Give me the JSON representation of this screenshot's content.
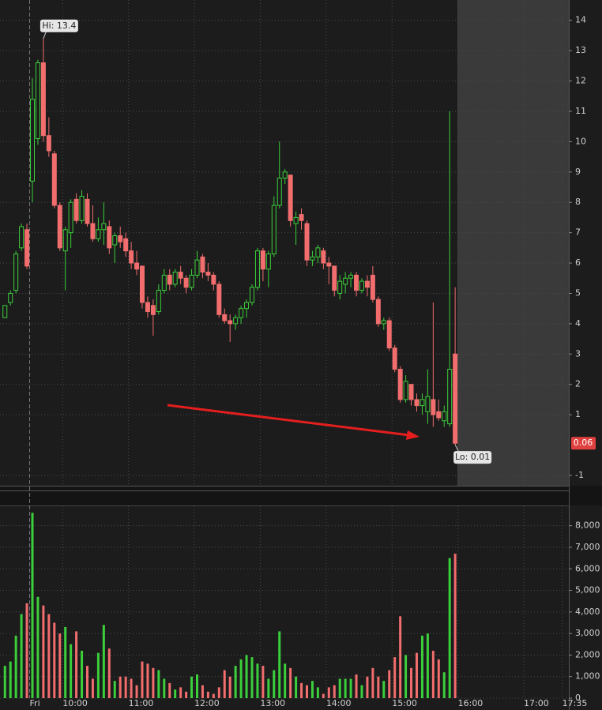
{
  "chart_data": [
    {
      "type": "candlestick",
      "annotations": [
        "Hi: 13.4",
        "Lo: 0.01"
      ],
      "up_color": "#3ccf3c",
      "down_color": "#f26d6d",
      "x": [
        545,
        550,
        555,
        560,
        565,
        570,
        575,
        580,
        585,
        590,
        595,
        600,
        605,
        610,
        615,
        620,
        625,
        630,
        635,
        640,
        645,
        650,
        655,
        660,
        665,
        670,
        675,
        680,
        685,
        690,
        695,
        700,
        705,
        710,
        715,
        720,
        725,
        730,
        735,
        740,
        745,
        750,
        755,
        760,
        765,
        770,
        775,
        780,
        785,
        790,
        795,
        800,
        805,
        810,
        815,
        820,
        825,
        830,
        835,
        840,
        845,
        850,
        855,
        860,
        865,
        870,
        875,
        880,
        885,
        890,
        895,
        900,
        905,
        910,
        915,
        920,
        925,
        930,
        935,
        940,
        945,
        950,
        955
      ],
      "open": [
        4.2,
        4.7,
        5.1,
        6.5,
        7.1,
        8.7,
        10.1,
        12.6,
        10.2,
        9.6,
        7.9,
        6.4,
        7.0,
        8.1,
        7.4,
        8.1,
        7.3,
        6.8,
        7.1,
        7.2,
        6.6,
        6.9,
        6.8,
        6.4,
        6.0,
        5.9,
        4.7,
        4.6,
        4.4,
        5.1,
        5.6,
        5.3,
        5.7,
        5.5,
        5.2,
        5.6,
        6.2,
        5.7,
        5.6,
        5.3,
        4.3,
        4.1,
        4.0,
        4.2,
        4.5,
        4.7,
        5.2,
        6.4,
        5.8,
        6.3,
        7.9,
        8.8,
        8.9,
        7.3,
        7.6,
        7.3,
        6.1,
        6.2,
        6.4,
        6.0,
        5.9,
        5.0,
        5.3,
        5.5,
        5.6,
        5.1,
        5.4,
        5.6,
        4.8,
        4.0,
        4.1,
        3.2,
        2.5,
        1.5,
        2.0,
        1.5,
        1.3,
        1.1,
        1.5,
        1.1,
        0.8,
        0.7,
        3.0
      ],
      "high": [
        4.6,
        5.1,
        6.4,
        7.3,
        7.3,
        12.1,
        12.7,
        13.4,
        10.8,
        9.7,
        8.0,
        7.2,
        8.1,
        8.3,
        8.4,
        8.3,
        7.9,
        7.5,
        8.0,
        7.4,
        7.0,
        7.2,
        7.0,
        6.7,
        6.4,
        5.9,
        4.9,
        4.8,
        5.3,
        5.8,
        5.8,
        5.8,
        5.9,
        5.6,
        5.8,
        6.4,
        6.3,
        6.0,
        5.7,
        5.4,
        4.5,
        4.3,
        4.3,
        4.6,
        4.8,
        5.3,
        6.5,
        6.5,
        6.4,
        8.2,
        10.0,
        9.1,
        8.9,
        7.7,
        7.8,
        7.4,
        6.4,
        6.6,
        6.5,
        6.2,
        5.9,
        5.6,
        5.7,
        5.7,
        5.7,
        5.5,
        5.6,
        5.9,
        4.9,
        4.2,
        4.2,
        3.3,
        2.6,
        2.3,
        2.0,
        1.7,
        1.7,
        2.5,
        4.7,
        1.5,
        1.3,
        11.0,
        5.2
      ],
      "low": [
        4.2,
        4.6,
        5.0,
        6.4,
        5.8,
        8.0,
        9.9,
        10.0,
        9.5,
        7.8,
        6.4,
        5.1,
        6.5,
        7.3,
        7.3,
        7.2,
        6.7,
        6.7,
        6.6,
        6.3,
        6.0,
        6.5,
        6.2,
        5.8,
        5.6,
        4.5,
        4.2,
        3.6,
        4.3,
        5.0,
        5.1,
        5.2,
        5.3,
        5.0,
        5.1,
        5.5,
        5.5,
        5.4,
        5.1,
        4.2,
        4.0,
        3.4,
        3.8,
        4.0,
        4.2,
        4.6,
        5.1,
        5.4,
        5.2,
        6.2,
        7.8,
        8.6,
        7.2,
        6.6,
        7.1,
        5.9,
        5.9,
        6.0,
        5.8,
        5.3,
        4.9,
        4.8,
        5.0,
        5.2,
        4.9,
        5.0,
        4.9,
        4.7,
        3.9,
        3.8,
        3.1,
        2.4,
        1.4,
        1.4,
        1.3,
        1.1,
        1.0,
        0.7,
        0.6,
        0.8,
        0.6,
        0.6,
        0.01
      ],
      "close": [
        4.6,
        5.0,
        6.3,
        7.2,
        5.9,
        11.4,
        12.6,
        10.2,
        9.7,
        7.9,
        6.5,
        7.1,
        8.0,
        7.4,
        8.2,
        7.3,
        6.8,
        7.1,
        7.3,
        6.5,
        6.9,
        6.7,
        6.4,
        6.0,
        5.8,
        4.7,
        4.4,
        4.3,
        5.1,
        5.6,
        5.3,
        5.7,
        5.5,
        5.2,
        5.6,
        6.1,
        5.7,
        5.6,
        5.3,
        4.3,
        4.1,
        4.0,
        4.2,
        4.5,
        4.7,
        5.2,
        6.4,
        5.8,
        6.3,
        7.9,
        8.8,
        9.0,
        7.4,
        7.5,
        7.4,
        6.1,
        6.2,
        6.5,
        6.0,
        5.9,
        5.1,
        5.4,
        5.5,
        5.6,
        5.1,
        5.4,
        5.2,
        4.8,
        4.0,
        4.1,
        3.2,
        2.5,
        1.5,
        2.1,
        1.5,
        1.3,
        1.5,
        1.6,
        1.0,
        0.9,
        1.1,
        2.5,
        0.06
      ],
      "xlim": [
        543,
        1061
      ],
      "xticks": [
        {
          "value": 570,
          "label": "Fri"
        },
        {
          "value": 600,
          "label": "10:00"
        },
        {
          "value": 660,
          "label": "11:00"
        },
        {
          "value": 720,
          "label": "12:00"
        },
        {
          "value": 780,
          "label": "13:00"
        },
        {
          "value": 840,
          "label": "14:00"
        },
        {
          "value": 900,
          "label": "15:00"
        },
        {
          "value": 960,
          "label": "16:00"
        },
        {
          "value": 1020,
          "label": "17:00"
        },
        {
          "value": 1055,
          "label": "17:35"
        }
      ],
      "ylim": [
        -1.34,
        14.67
      ],
      "yticks": [
        14,
        13,
        12,
        11,
        10,
        9,
        8,
        7,
        6,
        5,
        4,
        3,
        2,
        1,
        -1
      ],
      "grid": true
    },
    {
      "type": "bar",
      "x": [
        545,
        550,
        555,
        560,
        565,
        570,
        575,
        580,
        585,
        590,
        595,
        600,
        605,
        610,
        615,
        620,
        625,
        630,
        635,
        640,
        645,
        650,
        655,
        660,
        665,
        670,
        675,
        680,
        685,
        690,
        695,
        700,
        705,
        710,
        715,
        720,
        725,
        730,
        735,
        740,
        745,
        750,
        755,
        760,
        765,
        770,
        775,
        780,
        785,
        790,
        795,
        800,
        805,
        810,
        815,
        820,
        825,
        830,
        835,
        840,
        845,
        850,
        855,
        860,
        865,
        870,
        875,
        880,
        885,
        890,
        895,
        900,
        905,
        910,
        915,
        920,
        925,
        930,
        935,
        940,
        945,
        950,
        955
      ],
      "values": [
        1500,
        1700,
        2900,
        3900,
        4400,
        8600,
        4700,
        4300,
        3900,
        3500,
        3000,
        3300,
        2500,
        3100,
        2200,
        1500,
        900,
        2100,
        3400,
        2300,
        800,
        1000,
        1000,
        900,
        600,
        1700,
        1600,
        1400,
        1300,
        900,
        700,
        400,
        500,
        300,
        1000,
        1100,
        600,
        300,
        200,
        500,
        1300,
        1000,
        1500,
        1800,
        2000,
        1900,
        1600,
        1500,
        900,
        1300,
        3100,
        1600,
        1400,
        1000,
        700,
        600,
        800,
        500,
        200,
        500,
        600,
        900,
        900,
        900,
        1100,
        600,
        1000,
        1400,
        1000,
        800,
        1300,
        1900,
        3800,
        2000,
        1400,
        2100,
        2900,
        3000,
        2200,
        1800,
        1200,
        6500,
        6700
      ],
      "ylim": [
        0,
        9600
      ],
      "yticks": [
        0,
        {
          "value": 1000,
          "label": "1,000"
        },
        {
          "value": 2000,
          "label": "2,000"
        },
        {
          "value": 3000,
          "label": "3,000"
        },
        {
          "value": 4000,
          "label": "4,000"
        },
        {
          "value": 5000,
          "label": "5,000"
        },
        {
          "value": 6000,
          "label": "6,000"
        },
        {
          "value": 7000,
          "label": "7,000"
        },
        {
          "value": 8000,
          "label": "8,000"
        }
      ],
      "grid": true
    }
  ]
}
